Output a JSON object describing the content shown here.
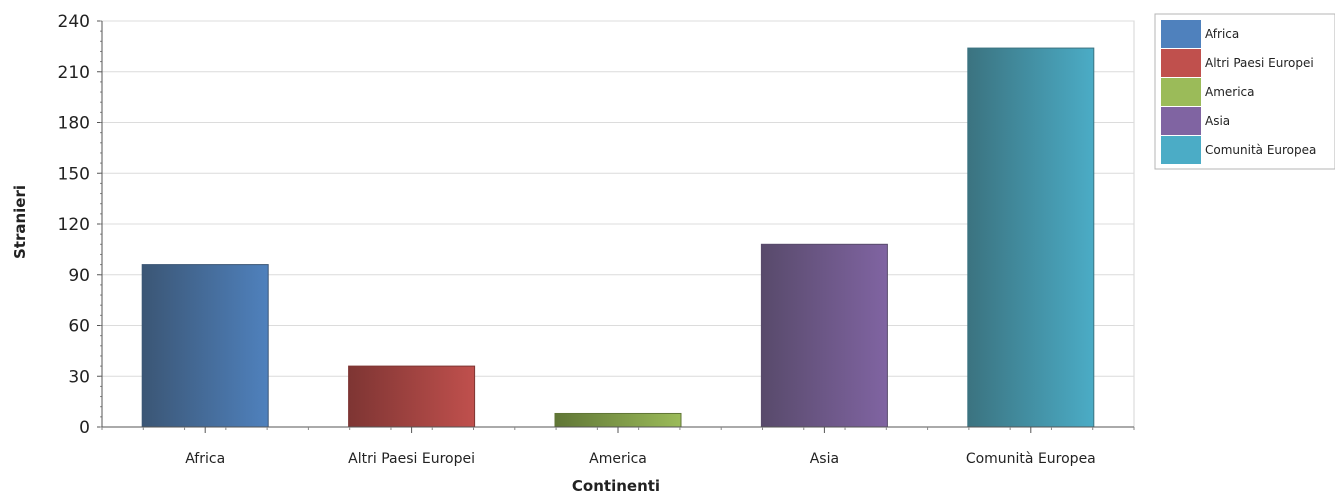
{
  "chart_data": {
    "type": "bar",
    "title": "",
    "xlabel": "Continenti",
    "ylabel": "Stranieri",
    "categories": [
      "Africa",
      "Altri Paesi Europei",
      "America",
      "Asia",
      "Comunità Europea"
    ],
    "values": [
      96,
      36,
      8,
      108,
      224
    ],
    "ylim": [
      0,
      240
    ],
    "yticks": [
      0,
      30,
      60,
      90,
      120,
      150,
      180,
      210,
      240
    ],
    "grid": true,
    "legend_position": "right",
    "legend": [
      "Africa",
      "Altri Paesi Europei",
      "America",
      "Asia",
      "Comunità Europea"
    ],
    "colors": {
      "light": [
        "#4f81bd",
        "#c0504d",
        "#9bbb59",
        "#8064a2",
        "#4bacc6"
      ],
      "dark": [
        "#3b5675",
        "#7e3533",
        "#607636",
        "#584a6b",
        "#3b7380"
      ]
    }
  }
}
